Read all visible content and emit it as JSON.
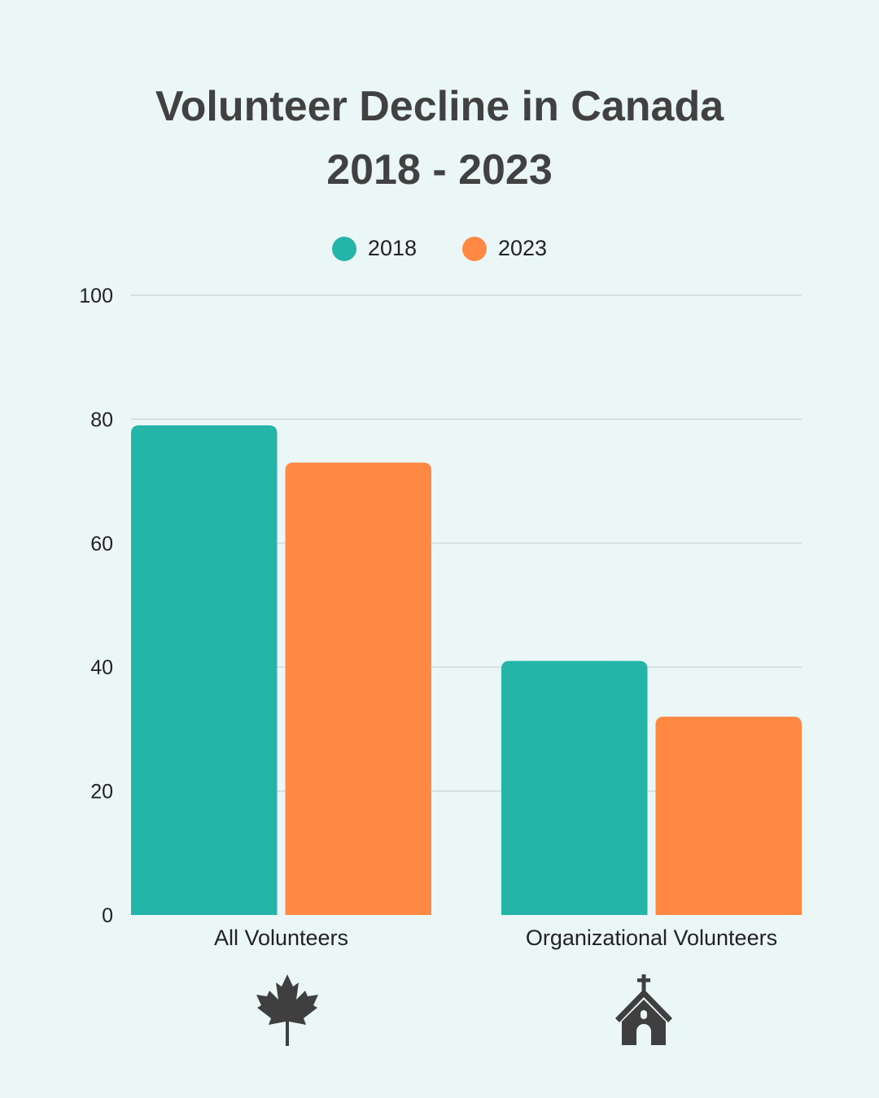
{
  "chart_data": {
    "type": "bar",
    "title": [
      "Volunteer Decline in Canada",
      "2018 - 2023"
    ],
    "categories": [
      "All Volunteers",
      "Organizational Volunteers"
    ],
    "series": [
      {
        "name": "2018",
        "values": [
          79,
          41
        ],
        "color": "#25b5a8"
      },
      {
        "name": "2023",
        "values": [
          73,
          32
        ],
        "color": "#ff8843"
      }
    ],
    "ylim": [
      0,
      100
    ],
    "yticks": [
      0,
      20,
      40,
      60,
      80,
      100
    ],
    "grid": true,
    "legend": "top-center"
  },
  "icons": {
    "category_icons": [
      "maple-leaf-icon",
      "church-icon"
    ],
    "color": "#3f3f3f"
  }
}
